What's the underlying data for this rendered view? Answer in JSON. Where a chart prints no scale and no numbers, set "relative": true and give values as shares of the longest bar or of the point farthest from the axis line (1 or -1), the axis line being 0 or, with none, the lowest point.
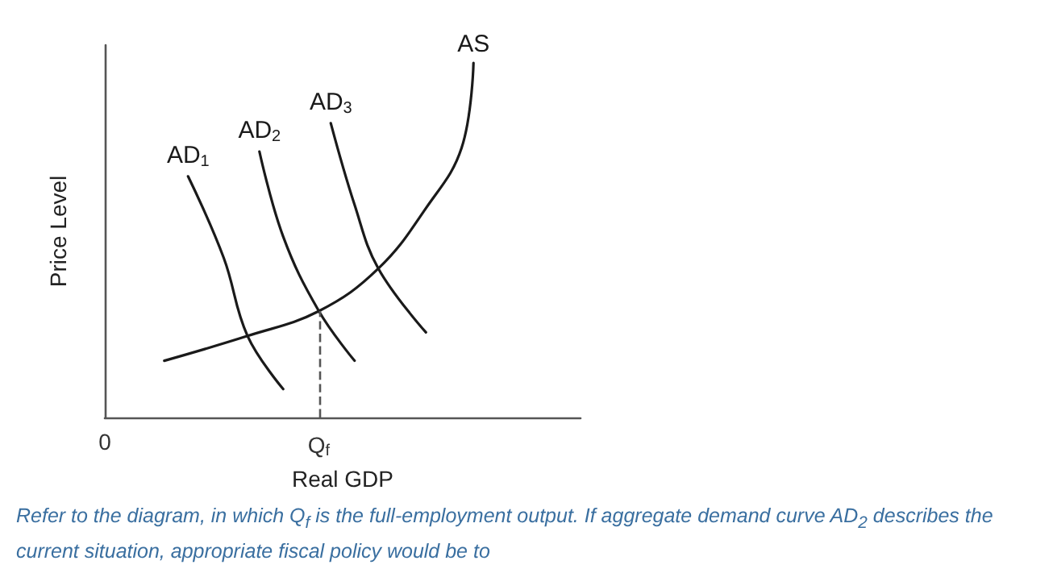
{
  "chart_data": {
    "type": "line",
    "relative": true,
    "xlabel": "Real GDP",
    "ylabel": "Price Level",
    "categories": [
      "0",
      null,
      null,
      null,
      null,
      null,
      null,
      null,
      null,
      null,
      null,
      null,
      null,
      null,
      null,
      null,
      null,
      null,
      "Q$_{f}$",
      null,
      null,
      null,
      null,
      null,
      null,
      null,
      null,
      null,
      null,
      null,
      null,
      null,
      null,
      null,
      null,
      null,
      null,
      null,
      null,
      null,
      null
    ],
    "tick_labels": "x",
    "grid": false,
    "legend": false,
    "marker": "none",
    "series": [
      {
        "name": "AS",
        "color": "#1a1a1a",
        "values": [
          null,
          null,
          null,
          null,
          null,
          0.16,
          null,
          null,
          null,
          null,
          null,
          null,
          0.23,
          null,
          null,
          null,
          null,
          null,
          0.3,
          null,
          null,
          null,
          null,
          0.42,
          null,
          null,
          null,
          0.59,
          null,
          null,
          0.76,
          1,
          null,
          null,
          null,
          null,
          null,
          null,
          null,
          null,
          null
        ]
      },
      {
        "name": "AD$_{1}$",
        "color": "#1a1a1a",
        "values": [
          null,
          null,
          null,
          null,
          null,
          null,
          null,
          0.68,
          null,
          null,
          0.45,
          null,
          0.23,
          null,
          null,
          0.08,
          null,
          null,
          null,
          null,
          null,
          null,
          null,
          null,
          null,
          null,
          null,
          null,
          null,
          null,
          null,
          null,
          null,
          null,
          null,
          null,
          null,
          null,
          null,
          null,
          null
        ]
      },
      {
        "name": "AD$_{2}$",
        "color": "#1a1a1a",
        "values": [
          null,
          null,
          null,
          null,
          null,
          null,
          null,
          null,
          null,
          null,
          null,
          null,
          null,
          0.75,
          null,
          0.51,
          null,
          null,
          0.3,
          null,
          null,
          0.16,
          null,
          null,
          null,
          null,
          null,
          null,
          null,
          null,
          null,
          null,
          null,
          null,
          null,
          null,
          null,
          null,
          null,
          null,
          null
        ]
      },
      {
        "name": "AD$_{3}$",
        "color": "#1a1a1a",
        "values": [
          null,
          null,
          null,
          null,
          null,
          null,
          null,
          null,
          null,
          null,
          null,
          null,
          null,
          null,
          null,
          null,
          null,
          null,
          null,
          0.83,
          null,
          0.6,
          null,
          0.42,
          null,
          null,
          null,
          0.24,
          null,
          null,
          null,
          null,
          null,
          null,
          null,
          null,
          null,
          null,
          null,
          null,
          null
        ]
      }
    ],
    "ref_lines": [
      {
        "axis": "x",
        "value": "Q$_{f}$",
        "color": "#555555",
        "line_style": "dashed"
      }
    ],
    "annotations": [
      "Refer to the diagram, in which Q$_{f}$ is the full-employment output. If aggregate demand curve AD$_{2}$ describes the current situation, appropriate fiscal policy would be to"
    ]
  }
}
